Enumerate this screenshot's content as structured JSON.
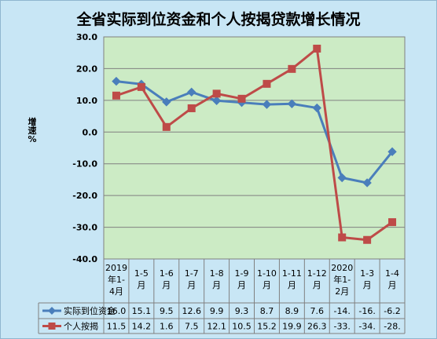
{
  "chart_data": {
    "type": "line",
    "title": "全省实际到位资金和个人按揭贷款增长情况",
    "ylabel": "增速%",
    "ylim": [
      -40,
      30
    ],
    "yticks": [
      "30.0",
      "20.0",
      "10.0",
      "0.0",
      "-10.0",
      "-20.0",
      "-30.0",
      "-40.0"
    ],
    "grid": true,
    "categories": [
      [
        "2019",
        "年1-",
        "4月"
      ],
      [
        "1-5",
        "月"
      ],
      [
        "1-6",
        "月"
      ],
      [
        "1-7",
        "月"
      ],
      [
        "1-8",
        "月"
      ],
      [
        "1-9",
        "月"
      ],
      [
        "1-10",
        "月"
      ],
      [
        "1-11",
        "月"
      ],
      [
        "1-12",
        "月"
      ],
      [
        "2020",
        "年1-",
        "2月"
      ],
      [
        "1-3",
        "月"
      ],
      [
        "1-4",
        "月"
      ]
    ],
    "series": [
      {
        "name": "实际到位资金",
        "color": "#4a7ebb",
        "marker": "diamond",
        "values": [
          16.0,
          15.1,
          9.5,
          12.6,
          9.9,
          9.3,
          8.7,
          8.9,
          7.6,
          -14.4,
          -16.0,
          -6.2
        ],
        "labels": [
          "16.0",
          "15.1",
          "9.5",
          "12.6",
          "9.9",
          "9.3",
          "8.7",
          "8.9",
          "7.6",
          "-14.",
          "-16.",
          "-6.2"
        ]
      },
      {
        "name": "个人按揭",
        "color": "#be4b48",
        "marker": "square",
        "values": [
          11.5,
          14.2,
          1.6,
          7.5,
          12.1,
          10.5,
          15.2,
          19.9,
          26.3,
          -33.2,
          -34.0,
          -28.4
        ],
        "labels": [
          "11.5",
          "14.2",
          "1.6",
          "7.5",
          "12.1",
          "10.5",
          "15.2",
          "19.9",
          "26.3",
          "-33.",
          "-34.",
          "-28."
        ]
      }
    ]
  }
}
